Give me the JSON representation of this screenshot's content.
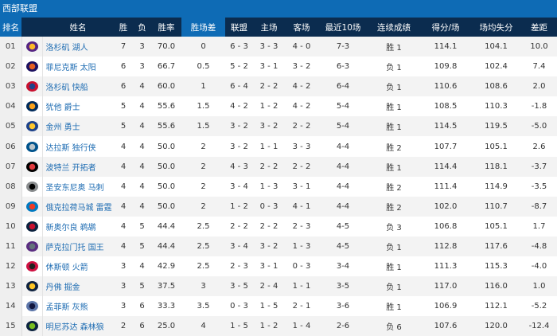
{
  "title": "西部联盟",
  "headers": [
    "排名",
    "",
    "姓名",
    "胜",
    "负",
    "胜率",
    "胜场差",
    "联盟",
    "主场",
    "客场",
    "最近10场",
    "连续成绩",
    "得分/场",
    "场均失分",
    "差距"
  ],
  "rows": [
    {
      "rank": "01",
      "logo": "lakers-logo",
      "logo_colors": [
        "#552583",
        "#fdb927"
      ],
      "name": "洛杉矶 湖人",
      "w": "7",
      "l": "3",
      "pct": "70.0",
      "gb": "0",
      "conf": "6 - 3",
      "home": "3 - 3",
      "away": "4 - 0",
      "last10": "7-3",
      "streak": "胜 1",
      "ppg": "114.1",
      "oppg": "104.1",
      "diff": "10.0"
    },
    {
      "rank": "02",
      "logo": "suns-logo",
      "logo_colors": [
        "#1d1160",
        "#e56020"
      ],
      "name": "菲尼克斯 太阳",
      "w": "6",
      "l": "3",
      "pct": "66.7",
      "gb": "0.5",
      "conf": "5 - 2",
      "home": "3 - 1",
      "away": "3 - 2",
      "last10": "6-3",
      "streak": "负 1",
      "ppg": "109.8",
      "oppg": "102.4",
      "diff": "7.4"
    },
    {
      "rank": "03",
      "logo": "clippers-logo",
      "logo_colors": [
        "#c8102e",
        "#1d428a"
      ],
      "name": "洛杉矶 快船",
      "w": "6",
      "l": "4",
      "pct": "60.0",
      "gb": "1",
      "conf": "6 - 4",
      "home": "2 - 2",
      "away": "4 - 2",
      "last10": "6-4",
      "streak": "负 1",
      "ppg": "110.6",
      "oppg": "108.6",
      "diff": "2.0"
    },
    {
      "rank": "04",
      "logo": "jazz-logo",
      "logo_colors": [
        "#002b5c",
        "#f9a01b"
      ],
      "name": "犹他 爵士",
      "w": "5",
      "l": "4",
      "pct": "55.6",
      "gb": "1.5",
      "conf": "4 - 2",
      "home": "1 - 2",
      "away": "4 - 2",
      "last10": "5-4",
      "streak": "胜 1",
      "ppg": "108.5",
      "oppg": "110.3",
      "diff": "-1.8"
    },
    {
      "rank": "05",
      "logo": "warriors-logo",
      "logo_colors": [
        "#1d428a",
        "#ffc72c"
      ],
      "name": "金州 勇士",
      "w": "5",
      "l": "4",
      "pct": "55.6",
      "gb": "1.5",
      "conf": "3 - 2",
      "home": "3 - 2",
      "away": "2 - 2",
      "last10": "5-4",
      "streak": "胜 1",
      "ppg": "114.5",
      "oppg": "119.5",
      "diff": "-5.0"
    },
    {
      "rank": "06",
      "logo": "mavericks-logo",
      "logo_colors": [
        "#00538c",
        "#b8c4ca"
      ],
      "name": "达拉斯 独行侠",
      "w": "4",
      "l": "4",
      "pct": "50.0",
      "gb": "2",
      "conf": "3 - 2",
      "home": "1 - 1",
      "away": "3 - 3",
      "last10": "4-4",
      "streak": "胜 2",
      "ppg": "107.7",
      "oppg": "105.1",
      "diff": "2.6"
    },
    {
      "rank": "07",
      "logo": "blazers-logo",
      "logo_colors": [
        "#000000",
        "#e03a3e"
      ],
      "name": "波特兰 开拓者",
      "w": "4",
      "l": "4",
      "pct": "50.0",
      "gb": "2",
      "conf": "4 - 3",
      "home": "2 - 2",
      "away": "2 - 2",
      "last10": "4-4",
      "streak": "胜 1",
      "ppg": "114.4",
      "oppg": "118.1",
      "diff": "-3.7"
    },
    {
      "rank": "08",
      "logo": "spurs-logo",
      "logo_colors": [
        "#8a8d8f",
        "#000000"
      ],
      "name": "圣安东尼奥 马刺",
      "w": "4",
      "l": "4",
      "pct": "50.0",
      "gb": "2",
      "conf": "3 - 4",
      "home": "1 - 3",
      "away": "3 - 1",
      "last10": "4-4",
      "streak": "胜 2",
      "ppg": "111.4",
      "oppg": "114.9",
      "diff": "-3.5"
    },
    {
      "rank": "09",
      "logo": "thunder-logo",
      "logo_colors": [
        "#007ac1",
        "#ef3b24"
      ],
      "name": "俄克拉荷马城 雷霆",
      "w": "4",
      "l": "4",
      "pct": "50.0",
      "gb": "2",
      "conf": "1 - 2",
      "home": "0 - 3",
      "away": "4 - 1",
      "last10": "4-4",
      "streak": "胜 2",
      "ppg": "102.0",
      "oppg": "110.7",
      "diff": "-8.7"
    },
    {
      "rank": "10",
      "logo": "pelicans-logo",
      "logo_colors": [
        "#0c2340",
        "#c8102e"
      ],
      "name": "新奥尔良 鹈鹕",
      "w": "4",
      "l": "5",
      "pct": "44.4",
      "gb": "2.5",
      "conf": "2 - 2",
      "home": "2 - 2",
      "away": "2 - 3",
      "last10": "4-5",
      "streak": "负 3",
      "ppg": "106.8",
      "oppg": "105.1",
      "diff": "1.7"
    },
    {
      "rank": "11",
      "logo": "kings-logo",
      "logo_colors": [
        "#5a2d81",
        "#63727a"
      ],
      "name": "萨克拉门托 国王",
      "w": "4",
      "l": "5",
      "pct": "44.4",
      "gb": "2.5",
      "conf": "3 - 4",
      "home": "3 - 2",
      "away": "1 - 3",
      "last10": "4-5",
      "streak": "负 1",
      "ppg": "112.8",
      "oppg": "117.6",
      "diff": "-4.8"
    },
    {
      "rank": "12",
      "logo": "rockets-logo",
      "logo_colors": [
        "#ce1141",
        "#222222"
      ],
      "name": "休斯顿 火箭",
      "w": "3",
      "l": "4",
      "pct": "42.9",
      "gb": "2.5",
      "conf": "2 - 3",
      "home": "3 - 1",
      "away": "0 - 3",
      "last10": "3-4",
      "streak": "胜 1",
      "ppg": "111.3",
      "oppg": "115.3",
      "diff": "-4.0"
    },
    {
      "rank": "13",
      "logo": "nuggets-logo",
      "logo_colors": [
        "#0e2240",
        "#fec524"
      ],
      "name": "丹佛 掘金",
      "w": "3",
      "l": "5",
      "pct": "37.5",
      "gb": "3",
      "conf": "3 - 5",
      "home": "2 - 4",
      "away": "1 - 1",
      "last10": "3-5",
      "streak": "负 1",
      "ppg": "117.0",
      "oppg": "116.0",
      "diff": "1.0"
    },
    {
      "rank": "14",
      "logo": "grizzlies-logo",
      "logo_colors": [
        "#5d76a9",
        "#12173f"
      ],
      "name": "孟菲斯 灰熊",
      "w": "3",
      "l": "6",
      "pct": "33.3",
      "gb": "3.5",
      "conf": "0 - 3",
      "home": "1 - 5",
      "away": "2 - 1",
      "last10": "3-6",
      "streak": "胜 1",
      "ppg": "106.9",
      "oppg": "112.1",
      "diff": "-5.2"
    },
    {
      "rank": "15",
      "logo": "timberwolves-logo",
      "logo_colors": [
        "#0c2340",
        "#78be20"
      ],
      "name": "明尼苏达 森林狼",
      "w": "2",
      "l": "6",
      "pct": "25.0",
      "gb": "4",
      "conf": "1 - 5",
      "home": "1 - 2",
      "away": "1 - 4",
      "last10": "2-6",
      "streak": "负 6",
      "ppg": "107.6",
      "oppg": "120.0",
      "diff": "-12.4"
    }
  ]
}
